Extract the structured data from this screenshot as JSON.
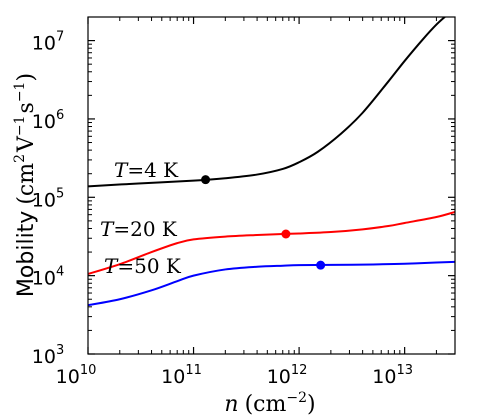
{
  "chart_data": {
    "type": "line",
    "title": "",
    "xlabel": {
      "var": "n",
      "unit_prefix": "(cm",
      "unit_exp": "−2",
      "unit_suffix": ")"
    },
    "ylabel": {
      "text": "Mobility",
      "unit": "(cm",
      "unit_exp1": "2",
      "unit_mid1": "V",
      "unit_exp2": "−1",
      "unit_mid2": "s",
      "unit_exp3": "−1",
      "unit_suffix": ")"
    },
    "xscale": "log",
    "yscale": "log",
    "xlim": [
      10000000000.0,
      30000000000000.0
    ],
    "ylim": [
      1000.0,
      20000000.0
    ],
    "grid": false,
    "x_ticks": [
      {
        "base": "10",
        "exp": "10",
        "value": 10000000000.0
      },
      {
        "base": "10",
        "exp": "11",
        "value": 100000000000.0
      },
      {
        "base": "10",
        "exp": "12",
        "value": 1000000000000.0
      },
      {
        "base": "10",
        "exp": "13",
        "value": 10000000000000.0
      }
    ],
    "y_ticks": [
      {
        "base": "10",
        "exp": "3",
        "value": 1000.0
      },
      {
        "base": "10",
        "exp": "4",
        "value": 10000.0
      },
      {
        "base": "10",
        "exp": "5",
        "value": 100000.0
      },
      {
        "base": "10",
        "exp": "6",
        "value": 1000000.0
      },
      {
        "base": "10",
        "exp": "7",
        "value": 10000000.0
      }
    ],
    "series": [
      {
        "key": "t4",
        "color": "#000000",
        "annotation": {
          "var": "T",
          "eq": "=4 K"
        },
        "x": [
          10000000000.0,
          30000000000.0,
          100000000000.0,
          200000000000.0,
          400000000000.0,
          700000000000.0,
          1000000000000.0,
          1500000000000.0,
          2500000000000.0,
          4000000000000.0,
          7000000000000.0,
          10000000000000.0,
          15000000000000.0,
          20000000000000.0,
          25000000000000.0
        ],
        "y": [
          138000.0,
          150000.0,
          163000.0,
          175000.0,
          195000.0,
          230000.0,
          280000.0,
          380000.0,
          650000.0,
          1200000.0,
          3000000.0,
          5500000.0,
          10500000.0,
          16000000.0,
          21000000.0
        ],
        "marker": {
          "x": 130000000000.0,
          "y": 168000.0
        }
      },
      {
        "key": "t20",
        "color": "#ff0000",
        "annotation": {
          "var": "T",
          "eq": "=20 K"
        },
        "x": [
          10000000000.0,
          20000000000.0,
          40000000000.0,
          70000000000.0,
          100000000000.0,
          200000000000.0,
          400000000000.0,
          700000000000.0,
          1000000000000.0,
          2000000000000.0,
          4000000000000.0,
          7000000000000.0,
          10000000000000.0,
          20000000000000.0,
          30000000000000.0
        ],
        "y": [
          10500.0,
          14000.0,
          20000.0,
          26000.0,
          29000.0,
          31500.0,
          33000.0,
          34000.0,
          34500.0,
          36000.0,
          39000.0,
          43000.0,
          47000.0,
          56000.0,
          65000.0
        ],
        "marker": {
          "x": 750000000000.0,
          "y": 34000.0
        }
      },
      {
        "key": "t50",
        "color": "#0000ff",
        "annotation": {
          "var": "T",
          "eq": "=50 K"
        },
        "x": [
          10000000000.0,
          20000000000.0,
          40000000000.0,
          70000000000.0,
          100000000000.0,
          200000000000.0,
          400000000000.0,
          700000000000.0,
          1000000000000.0,
          2000000000000.0,
          5000000000000.0,
          10000000000000.0,
          20000000000000.0,
          30000000000000.0
        ],
        "y": [
          4200.0,
          5000.0,
          6500.0,
          8500.0,
          10000.0,
          12000.0,
          13000.0,
          13400.0,
          13600.0,
          13700.0,
          13900.0,
          14200.0,
          14700.0,
          15000.0
        ],
        "marker": {
          "x": 1600000000000.0,
          "y": 13600.0
        }
      }
    ]
  }
}
